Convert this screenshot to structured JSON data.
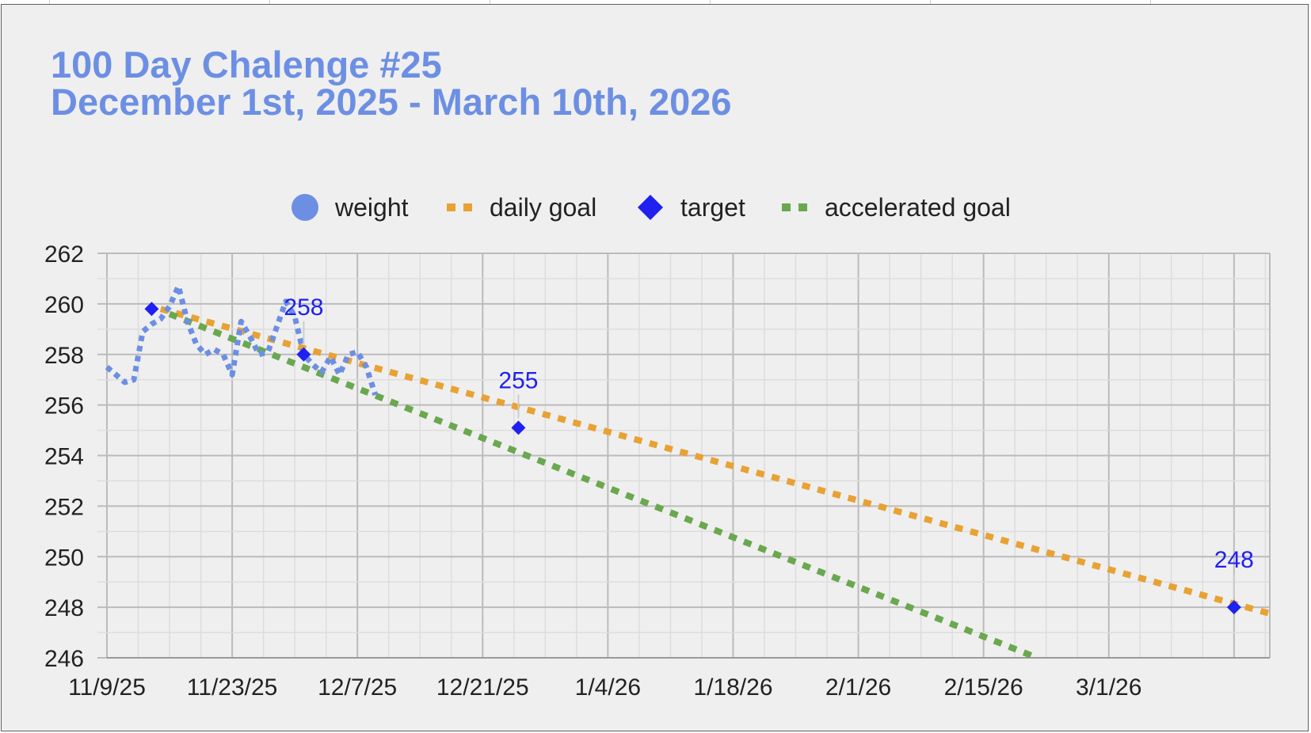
{
  "chart_data": {
    "type": "line",
    "title": "100 Day Chalenge #25",
    "subtitle": "December 1st, 2025 - March 10th, 2026",
    "xlabel": "",
    "ylabel": "",
    "ylim": [
      246,
      262
    ],
    "xlim": [
      "2025-11-09",
      "2026-03-19"
    ],
    "y_ticks": [
      262,
      260,
      258,
      256,
      254,
      252,
      250,
      248,
      246
    ],
    "x_ticks": [
      {
        "date": "2025-11-09",
        "label": "11/9/25"
      },
      {
        "date": "2025-11-23",
        "label": "11/23/25"
      },
      {
        "date": "2025-12-07",
        "label": "12/7/25"
      },
      {
        "date": "2025-12-21",
        "label": "12/21/25"
      },
      {
        "date": "2026-01-04",
        "label": "1/4/26"
      },
      {
        "date": "2026-01-18",
        "label": "1/18/26"
      },
      {
        "date": "2026-02-01",
        "label": "2/1/26"
      },
      {
        "date": "2026-02-15",
        "label": "2/15/26"
      },
      {
        "date": "2026-03-01",
        "label": "3/1/26"
      }
    ],
    "grid": true,
    "legend_position": "top",
    "series": [
      {
        "name": "weight",
        "color": "#6d8fe3",
        "style": "dotted",
        "marker": "circle",
        "points": [
          {
            "x": "2025-11-09",
            "y": 257.5
          },
          {
            "x": "2025-11-10",
            "y": 257.2
          },
          {
            "x": "2025-11-11",
            "y": 256.9
          },
          {
            "x": "2025-11-12",
            "y": 257.0
          },
          {
            "x": "2025-11-13",
            "y": 258.9
          },
          {
            "x": "2025-11-14",
            "y": 259.2
          },
          {
            "x": "2025-11-15",
            "y": 259.4
          },
          {
            "x": "2025-11-16",
            "y": 259.9
          },
          {
            "x": "2025-11-17",
            "y": 260.7
          },
          {
            "x": "2025-11-18",
            "y": 259.3
          },
          {
            "x": "2025-11-19",
            "y": 258.4
          },
          {
            "x": "2025-11-20",
            "y": 258.0
          },
          {
            "x": "2025-11-21",
            "y": 258.2
          },
          {
            "x": "2025-11-22",
            "y": 258.0
          },
          {
            "x": "2025-11-23",
            "y": 257.2
          },
          {
            "x": "2025-11-24",
            "y": 259.3
          },
          {
            "x": "2025-11-25",
            "y": 258.7
          },
          {
            "x": "2025-11-26",
            "y": 258.0
          },
          {
            "x": "2025-11-27",
            "y": 258.1
          },
          {
            "x": "2025-11-28",
            "y": 259.1
          },
          {
            "x": "2025-11-29",
            "y": 260.1
          },
          {
            "x": "2025-11-30",
            "y": 259.5
          },
          {
            "x": "2025-12-01",
            "y": 258.0
          },
          {
            "x": "2025-12-02",
            "y": 257.6
          },
          {
            "x": "2025-12-03",
            "y": 257.3
          },
          {
            "x": "2025-12-04",
            "y": 257.9
          },
          {
            "x": "2025-12-05",
            "y": 257.2
          },
          {
            "x": "2025-12-06",
            "y": 258.0
          },
          {
            "x": "2025-12-07",
            "y": 258.1
          },
          {
            "x": "2025-12-08",
            "y": 257.5
          },
          {
            "x": "2025-12-09",
            "y": 256.4
          }
        ]
      },
      {
        "name": "daily goal",
        "color": "#e8a234",
        "style": "dotted",
        "points": [
          {
            "x": "2025-11-15",
            "y": 259.8
          },
          {
            "x": "2026-03-19",
            "y": 247.75
          }
        ]
      },
      {
        "name": "target",
        "color": "#2020f0",
        "style": "markers",
        "marker": "diamond",
        "points": [
          {
            "x": "2025-11-14",
            "y": 259.8,
            "label": ""
          },
          {
            "x": "2025-12-01",
            "y": 258,
            "label": "258"
          },
          {
            "x": "2025-12-25",
            "y": 255.1,
            "label": "255"
          },
          {
            "x": "2026-03-15",
            "y": 248,
            "label": "248"
          }
        ]
      },
      {
        "name": "accelerated goal",
        "color": "#6aa84f",
        "style": "dotted",
        "points": [
          {
            "x": "2025-11-16",
            "y": 259.6
          },
          {
            "x": "2026-02-21",
            "y": 246
          }
        ]
      }
    ]
  },
  "colors": {
    "title": "#6d8fe3",
    "background": "#efefef",
    "grid_major": "#bbbbbb",
    "grid_minor": "#dddddd",
    "annotation": "#2020f0"
  }
}
